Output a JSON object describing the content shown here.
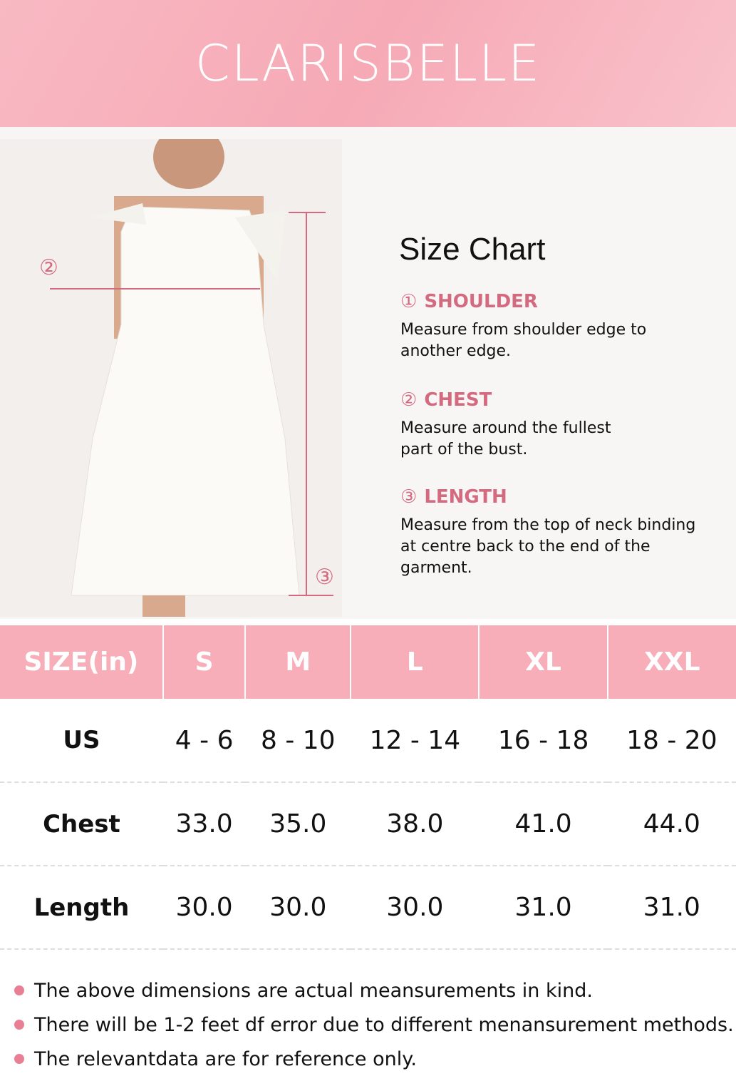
{
  "brand": "CLARISBELLE",
  "title": "Size Chart",
  "markers": {
    "chest": "②",
    "length": "③"
  },
  "sections": [
    {
      "num": "①",
      "name": "SHOULDER",
      "desc": "Measure from shoulder edge to another edge."
    },
    {
      "num": "②",
      "name": "CHEST",
      "desc": "Measure around the fullest part of the bust."
    },
    {
      "num": "③",
      "name": "LENGTH",
      "desc": "Measure from the top of neck binding at centre back to the end of the garment."
    }
  ],
  "table": {
    "headers": [
      "SIZE(in)",
      "S",
      "M",
      "L",
      "XL",
      "XXL"
    ],
    "rows": [
      [
        "US",
        "4 - 6",
        "8 - 10",
        "12 - 14",
        "16 - 18",
        "18 - 20"
      ],
      [
        "Chest",
        "33.0",
        "35.0",
        "38.0",
        "41.0",
        "44.0"
      ],
      [
        "Length",
        "30.0",
        "30.0",
        "30.0",
        "31.0",
        "31.0"
      ]
    ]
  },
  "notes": [
    "The above dimensions are actual meansurements in kind.",
    "There will be 1-2 feet df error due to different menansurement methods.",
    "The relevantdata are for reference only."
  ],
  "colors": {
    "header": "#f8aeb8",
    "accent": "#d46a80"
  }
}
